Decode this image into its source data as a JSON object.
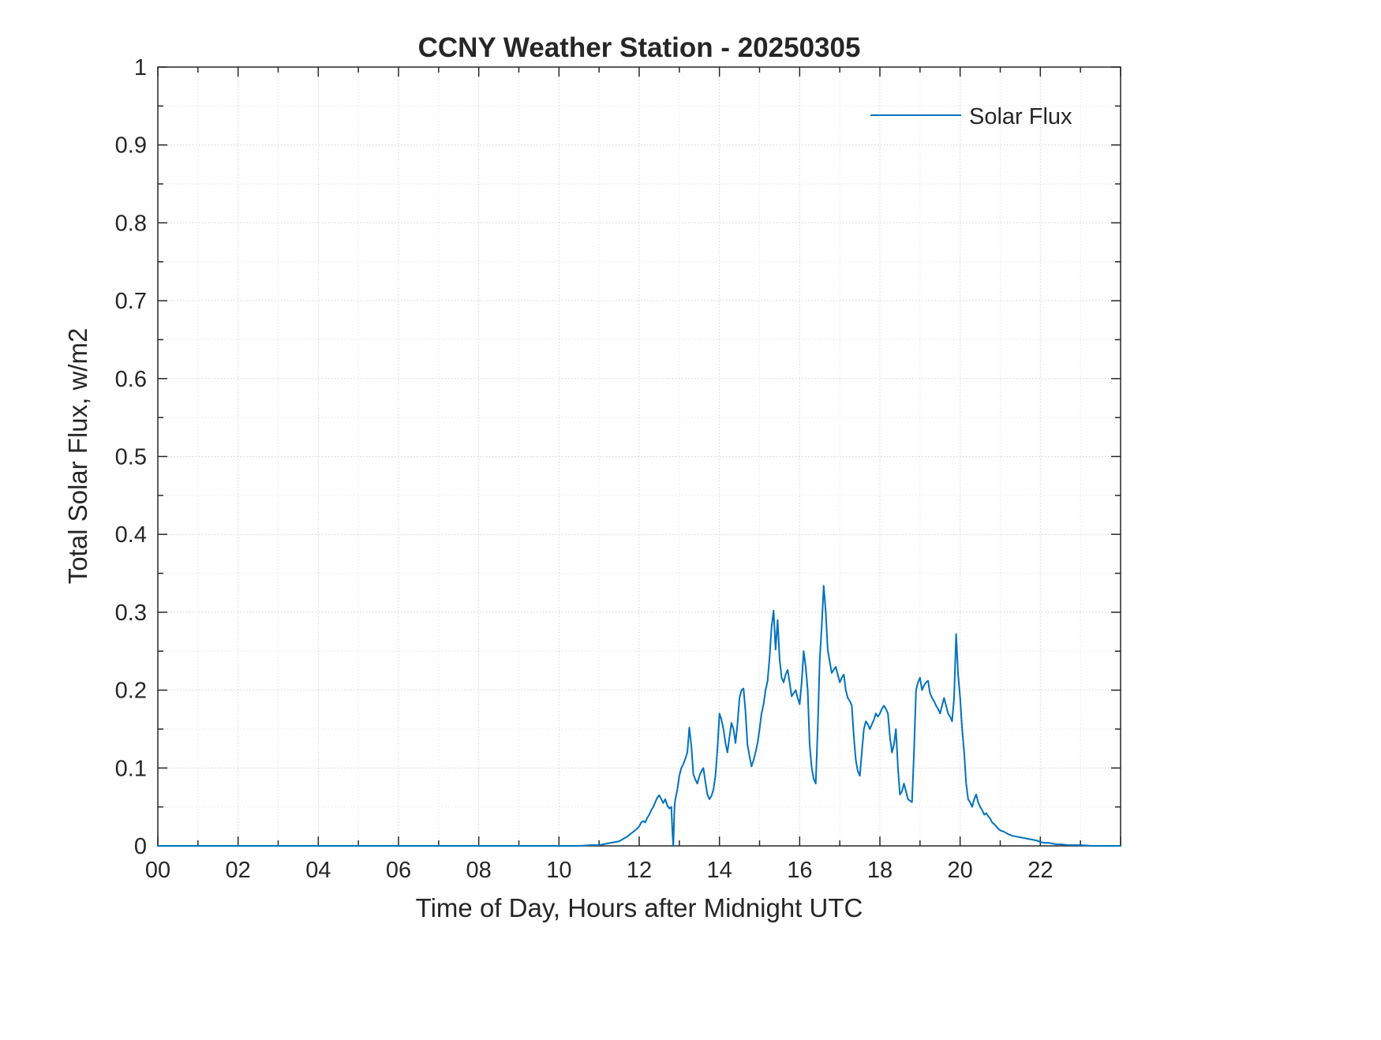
{
  "colors": {
    "line": "#0072BD",
    "axis": "#262626",
    "grid_major": "#d2d2d2",
    "grid_minor": "#e6e6e6",
    "background": "#ffffff"
  },
  "chart_data": {
    "type": "line",
    "title": "CCNY Weather Station - 20250305",
    "xlabel": "Time of Day, Hours after Midnight UTC",
    "ylabel": "Total Solar Flux, w/m2",
    "xlim": [
      0,
      24
    ],
    "ylim": [
      0,
      1
    ],
    "grid": true,
    "x_tick_values": [
      0,
      2,
      4,
      6,
      8,
      10,
      12,
      14,
      16,
      18,
      20,
      22
    ],
    "x_tick_labels": [
      "00",
      "02",
      "04",
      "06",
      "08",
      "10",
      "12",
      "14",
      "16",
      "18",
      "20",
      "22"
    ],
    "y_tick_values": [
      0,
      0.1,
      0.2,
      0.3,
      0.4,
      0.5,
      0.6,
      0.7,
      0.8,
      0.9,
      1
    ],
    "y_tick_labels": [
      "0",
      "0.1",
      "0.2",
      "0.3",
      "0.4",
      "0.5",
      "0.6",
      "0.7",
      "0.8",
      "0.9",
      "1"
    ],
    "legend": {
      "position": "top-right",
      "entries": [
        {
          "label": "Solar Flux",
          "color": "#0072BD"
        }
      ]
    },
    "series": [
      {
        "name": "Solar Flux",
        "color": "#0072BD",
        "points": [
          [
            0,
            0
          ],
          [
            0.5,
            0
          ],
          [
            1,
            0
          ],
          [
            1.5,
            0
          ],
          [
            2,
            0
          ],
          [
            2.5,
            0
          ],
          [
            3,
            0
          ],
          [
            3.5,
            0
          ],
          [
            4,
            0
          ],
          [
            4.5,
            0
          ],
          [
            5,
            0
          ],
          [
            5.5,
            0
          ],
          [
            6,
            0
          ],
          [
            6.5,
            0
          ],
          [
            7,
            0
          ],
          [
            7.5,
            0
          ],
          [
            8,
            0
          ],
          [
            8.5,
            0
          ],
          [
            9,
            0
          ],
          [
            9.5,
            0
          ],
          [
            10,
            0
          ],
          [
            10.5,
            0
          ],
          [
            10.8,
            0.001
          ],
          [
            11,
            0.001
          ],
          [
            11.2,
            0.003
          ],
          [
            11.4,
            0.005
          ],
          [
            11.5,
            0.006
          ],
          [
            11.6,
            0.009
          ],
          [
            11.7,
            0.012
          ],
          [
            11.8,
            0.016
          ],
          [
            11.9,
            0.02
          ],
          [
            12,
            0.025
          ],
          [
            12.05,
            0.03
          ],
          [
            12.1,
            0.032
          ],
          [
            12.15,
            0.03
          ],
          [
            12.2,
            0.036
          ],
          [
            12.25,
            0.04
          ],
          [
            12.3,
            0.046
          ],
          [
            12.35,
            0.05
          ],
          [
            12.4,
            0.056
          ],
          [
            12.45,
            0.062
          ],
          [
            12.5,
            0.065
          ],
          [
            12.55,
            0.06
          ],
          [
            12.6,
            0.055
          ],
          [
            12.65,
            0.06
          ],
          [
            12.7,
            0.052
          ],
          [
            12.75,
            0.048
          ],
          [
            12.8,
            0.05
          ],
          [
            12.83,
            0.015
          ],
          [
            12.85,
            0
          ],
          [
            12.88,
            0.05
          ],
          [
            12.9,
            0.06
          ],
          [
            12.95,
            0.072
          ],
          [
            13,
            0.09
          ],
          [
            13.05,
            0.1
          ],
          [
            13.1,
            0.105
          ],
          [
            13.15,
            0.112
          ],
          [
            13.2,
            0.12
          ],
          [
            13.25,
            0.152
          ],
          [
            13.3,
            0.128
          ],
          [
            13.35,
            0.092
          ],
          [
            13.4,
            0.085
          ],
          [
            13.45,
            0.08
          ],
          [
            13.5,
            0.09
          ],
          [
            13.55,
            0.096
          ],
          [
            13.6,
            0.1
          ],
          [
            13.65,
            0.082
          ],
          [
            13.7,
            0.066
          ],
          [
            13.75,
            0.06
          ],
          [
            13.8,
            0.064
          ],
          [
            13.85,
            0.072
          ],
          [
            13.9,
            0.09
          ],
          [
            13.95,
            0.124
          ],
          [
            14,
            0.17
          ],
          [
            14.05,
            0.162
          ],
          [
            14.1,
            0.15
          ],
          [
            14.15,
            0.132
          ],
          [
            14.2,
            0.12
          ],
          [
            14.25,
            0.14
          ],
          [
            14.3,
            0.158
          ],
          [
            14.35,
            0.15
          ],
          [
            14.4,
            0.132
          ],
          [
            14.45,
            0.156
          ],
          [
            14.5,
            0.19
          ],
          [
            14.55,
            0.2
          ],
          [
            14.6,
            0.202
          ],
          [
            14.65,
            0.172
          ],
          [
            14.7,
            0.13
          ],
          [
            14.75,
            0.115
          ],
          [
            14.8,
            0.102
          ],
          [
            14.85,
            0.11
          ],
          [
            14.9,
            0.12
          ],
          [
            14.95,
            0.132
          ],
          [
            15,
            0.15
          ],
          [
            15.05,
            0.17
          ],
          [
            15.1,
            0.182
          ],
          [
            15.15,
            0.2
          ],
          [
            15.2,
            0.212
          ],
          [
            15.25,
            0.242
          ],
          [
            15.3,
            0.282
          ],
          [
            15.35,
            0.302
          ],
          [
            15.4,
            0.252
          ],
          [
            15.45,
            0.29
          ],
          [
            15.5,
            0.24
          ],
          [
            15.55,
            0.216
          ],
          [
            15.6,
            0.21
          ],
          [
            15.65,
            0.22
          ],
          [
            15.7,
            0.226
          ],
          [
            15.75,
            0.21
          ],
          [
            15.8,
            0.192
          ],
          [
            15.85,
            0.196
          ],
          [
            15.9,
            0.2
          ],
          [
            15.95,
            0.19
          ],
          [
            16,
            0.182
          ],
          [
            16.05,
            0.21
          ],
          [
            16.1,
            0.25
          ],
          [
            16.15,
            0.23
          ],
          [
            16.2,
            0.2
          ],
          [
            16.25,
            0.13
          ],
          [
            16.3,
            0.1
          ],
          [
            16.35,
            0.086
          ],
          [
            16.4,
            0.08
          ],
          [
            16.45,
            0.15
          ],
          [
            16.5,
            0.24
          ],
          [
            16.55,
            0.282
          ],
          [
            16.6,
            0.334
          ],
          [
            16.65,
            0.3
          ],
          [
            16.7,
            0.252
          ],
          [
            16.75,
            0.236
          ],
          [
            16.8,
            0.222
          ],
          [
            16.85,
            0.226
          ],
          [
            16.9,
            0.23
          ],
          [
            16.95,
            0.22
          ],
          [
            17,
            0.21
          ],
          [
            17.05,
            0.216
          ],
          [
            17.1,
            0.22
          ],
          [
            17.15,
            0.2
          ],
          [
            17.2,
            0.19
          ],
          [
            17.25,
            0.186
          ],
          [
            17.3,
            0.18
          ],
          [
            17.35,
            0.14
          ],
          [
            17.4,
            0.11
          ],
          [
            17.45,
            0.096
          ],
          [
            17.5,
            0.09
          ],
          [
            17.55,
            0.12
          ],
          [
            17.6,
            0.15
          ],
          [
            17.65,
            0.16
          ],
          [
            17.7,
            0.156
          ],
          [
            17.75,
            0.15
          ],
          [
            17.8,
            0.156
          ],
          [
            17.85,
            0.162
          ],
          [
            17.9,
            0.17
          ],
          [
            17.95,
            0.166
          ],
          [
            18,
            0.17
          ],
          [
            18.05,
            0.176
          ],
          [
            18.1,
            0.18
          ],
          [
            18.15,
            0.176
          ],
          [
            18.2,
            0.17
          ],
          [
            18.25,
            0.14
          ],
          [
            18.3,
            0.12
          ],
          [
            18.35,
            0.13
          ],
          [
            18.4,
            0.15
          ],
          [
            18.45,
            0.1
          ],
          [
            18.5,
            0.066
          ],
          [
            18.55,
            0.07
          ],
          [
            18.6,
            0.08
          ],
          [
            18.65,
            0.07
          ],
          [
            18.7,
            0.06
          ],
          [
            18.75,
            0.058
          ],
          [
            18.8,
            0.056
          ],
          [
            18.85,
            0.12
          ],
          [
            18.9,
            0.2
          ],
          [
            18.95,
            0.21
          ],
          [
            19,
            0.216
          ],
          [
            19.05,
            0.2
          ],
          [
            19.1,
            0.206
          ],
          [
            19.15,
            0.21
          ],
          [
            19.2,
            0.212
          ],
          [
            19.25,
            0.196
          ],
          [
            19.3,
            0.19
          ],
          [
            19.35,
            0.186
          ],
          [
            19.4,
            0.18
          ],
          [
            19.45,
            0.176
          ],
          [
            19.5,
            0.17
          ],
          [
            19.55,
            0.18
          ],
          [
            19.6,
            0.19
          ],
          [
            19.65,
            0.18
          ],
          [
            19.7,
            0.17
          ],
          [
            19.75,
            0.166
          ],
          [
            19.8,
            0.16
          ],
          [
            19.85,
            0.19
          ],
          [
            19.9,
            0.272
          ],
          [
            19.95,
            0.22
          ],
          [
            20,
            0.19
          ],
          [
            20.05,
            0.15
          ],
          [
            20.1,
            0.12
          ],
          [
            20.15,
            0.08
          ],
          [
            20.2,
            0.06
          ],
          [
            20.25,
            0.056
          ],
          [
            20.3,
            0.05
          ],
          [
            20.35,
            0.06
          ],
          [
            20.4,
            0.066
          ],
          [
            20.45,
            0.056
          ],
          [
            20.5,
            0.05
          ],
          [
            20.55,
            0.046
          ],
          [
            20.6,
            0.04
          ],
          [
            20.65,
            0.042
          ],
          [
            20.7,
            0.038
          ],
          [
            20.75,
            0.035
          ],
          [
            20.8,
            0.03
          ],
          [
            20.85,
            0.028
          ],
          [
            20.9,
            0.025
          ],
          [
            20.95,
            0.022
          ],
          [
            21,
            0.02
          ],
          [
            21.1,
            0.018
          ],
          [
            21.2,
            0.015
          ],
          [
            21.3,
            0.013
          ],
          [
            21.4,
            0.012
          ],
          [
            21.5,
            0.011
          ],
          [
            21.6,
            0.01
          ],
          [
            21.7,
            0.009
          ],
          [
            21.8,
            0.008
          ],
          [
            21.9,
            0.007
          ],
          [
            22,
            0.005
          ],
          [
            22.1,
            0.004
          ],
          [
            22.2,
            0.004
          ],
          [
            22.3,
            0.003
          ],
          [
            22.4,
            0.002
          ],
          [
            22.5,
            0.002
          ],
          [
            22.7,
            0.001
          ],
          [
            23,
            0.001
          ],
          [
            23.3,
            0
          ],
          [
            23.6,
            0
          ],
          [
            24,
            0
          ]
        ]
      }
    ]
  }
}
